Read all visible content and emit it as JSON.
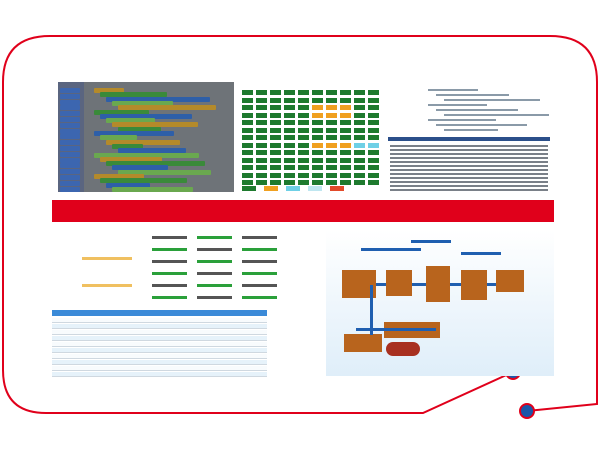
{
  "colors": {
    "frame": "#e0001b",
    "red_bar": "#e0001b",
    "dot": "#1b56a8",
    "grid_green": "#1e7a2e",
    "grid_orange": "#f0a020",
    "grid_cyan": "#6fd0e6",
    "blocks_grey": "#6e7378",
    "code_bar": "#2b4f8a",
    "flow_arrow": "#1f5fb0",
    "flow_box": "#b8641d"
  },
  "panels": [
    {
      "name": "visual-programming-blocks"
    },
    {
      "name": "status-grid"
    },
    {
      "name": "code-editor"
    },
    {
      "name": "schedule-table"
    },
    {
      "name": "logistics-flowchart"
    }
  ]
}
